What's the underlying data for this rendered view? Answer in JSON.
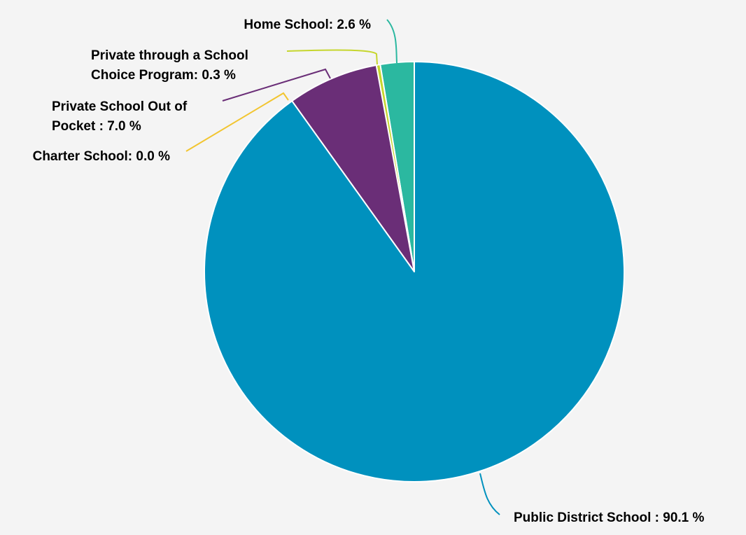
{
  "chart_data": {
    "type": "pie",
    "start_angle_deg": 0,
    "direction": "counterclockwise",
    "slices": [
      {
        "label": "Home School",
        "value": 2.6,
        "text_lines": [
          "Home School: 2.6 %"
        ],
        "color": "#2bb8a0"
      },
      {
        "label": "Private through a School Choice Program",
        "value": 0.3,
        "text_lines": [
          "Private through a School",
          "Choice Program: 0.3 %"
        ],
        "color": "#c6d62e"
      },
      {
        "label": "Private School Out of Pocket",
        "value": 7.0,
        "text_lines": [
          "Private School Out of",
          "Pocket : 7.0 %"
        ],
        "color": "#6a2e77"
      },
      {
        "label": "Charter School",
        "value": 0.0,
        "text_lines": [
          "Charter School: 0.0 %"
        ],
        "color": "#f2c530"
      },
      {
        "label": "Public District School",
        "value": 90.1,
        "text_lines": [
          "Public District School : 90.1 %"
        ],
        "color": "#0091be"
      }
    ]
  }
}
